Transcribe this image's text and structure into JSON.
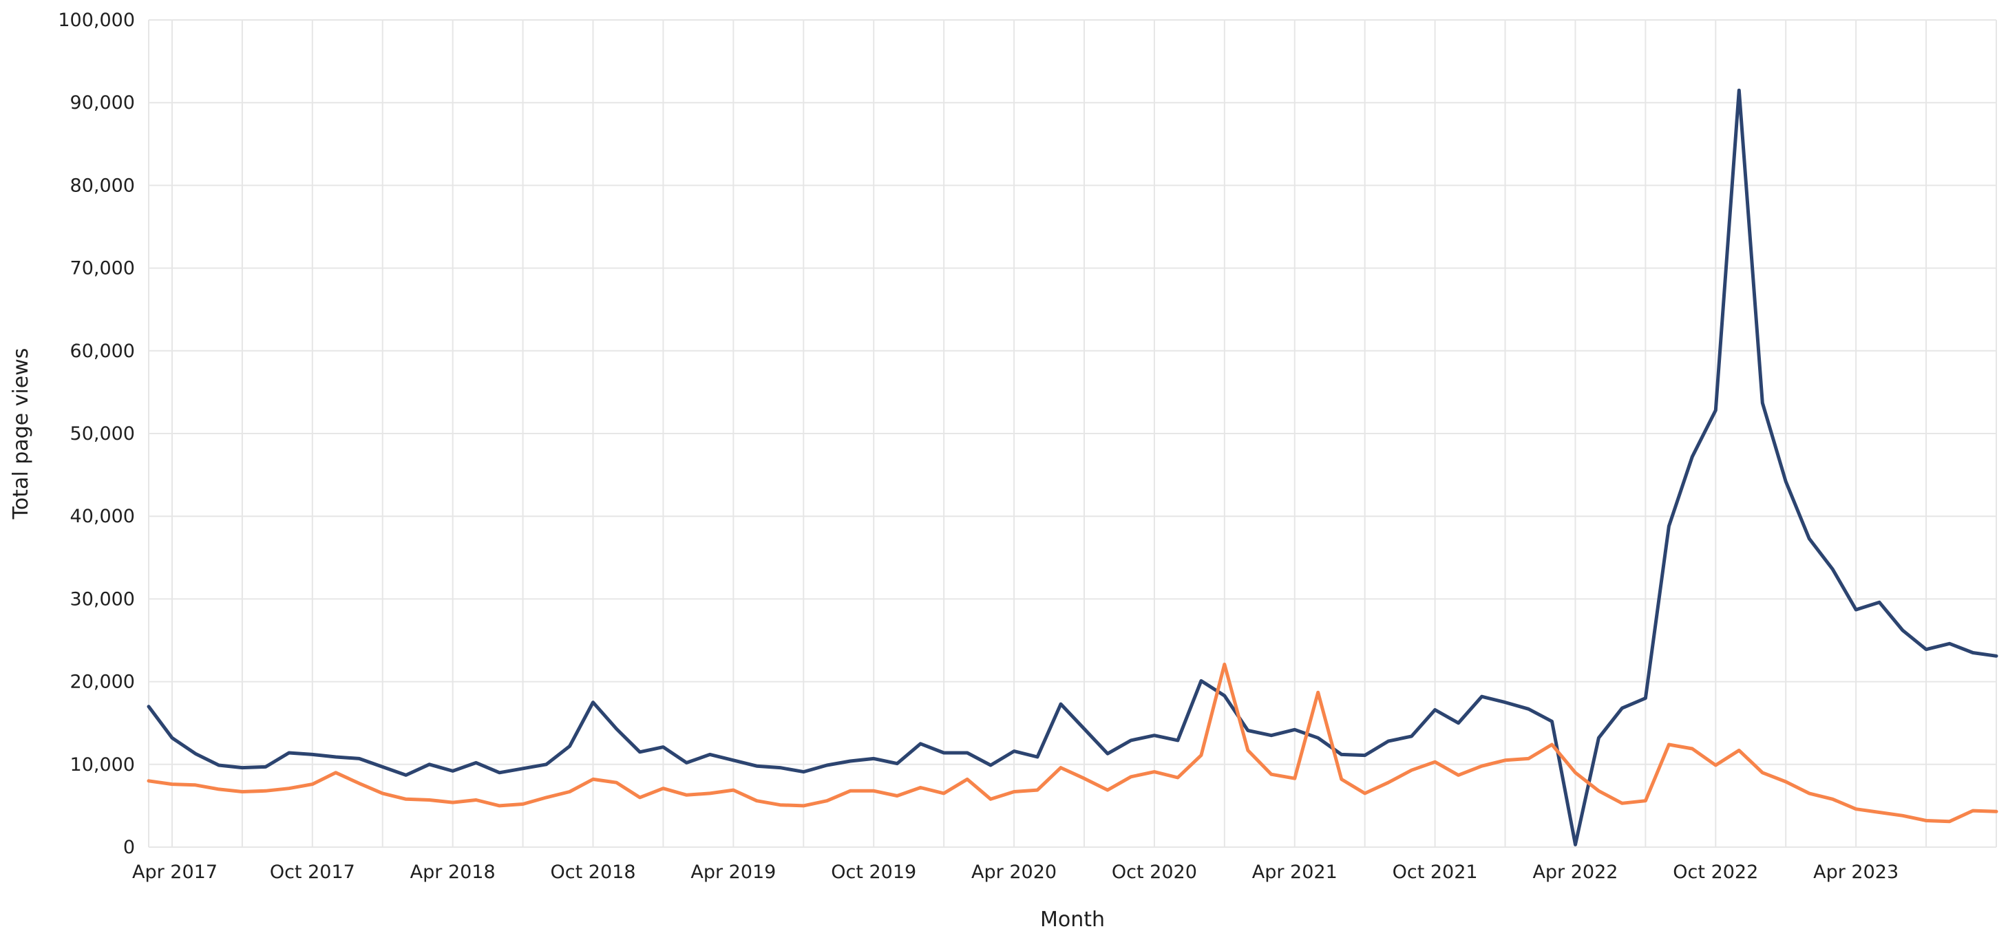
{
  "chart_data": {
    "type": "line",
    "xlabel": "Month",
    "ylabel": "Total page views",
    "ylim": [
      0,
      100000
    ],
    "yticks": [
      0,
      10000,
      20000,
      30000,
      40000,
      50000,
      60000,
      70000,
      80000,
      90000,
      100000
    ],
    "ytick_labels": [
      "0",
      "10,000",
      "20,000",
      "30,000",
      "40,000",
      "50,000",
      "60,000",
      "70,000",
      "80,000",
      "90,000",
      "100,000"
    ],
    "xticks": [
      "2017-04",
      "2017-10",
      "2018-04",
      "2018-10",
      "2019-04",
      "2019-10",
      "2020-04",
      "2020-10",
      "2021-04",
      "2021-10",
      "2022-04",
      "2022-10",
      "2023-04"
    ],
    "xtick_labels": [
      "Apr 2017",
      "Oct 2017",
      "Apr 2018",
      "Oct 2018",
      "Apr 2019",
      "Oct 2019",
      "Apr 2020",
      "Oct 2020",
      "Apr 2021",
      "Oct 2021",
      "Apr 2022",
      "Oct 2022",
      "Apr 2023"
    ],
    "grid": true,
    "x": [
      "2017-03",
      "2017-04",
      "2017-05",
      "2017-06",
      "2017-07",
      "2017-08",
      "2017-09",
      "2017-10",
      "2017-11",
      "2017-12",
      "2018-01",
      "2018-02",
      "2018-03",
      "2018-04",
      "2018-05",
      "2018-06",
      "2018-07",
      "2018-08",
      "2018-09",
      "2018-10",
      "2018-11",
      "2018-12",
      "2019-01",
      "2019-02",
      "2019-03",
      "2019-04",
      "2019-05",
      "2019-06",
      "2019-07",
      "2019-08",
      "2019-09",
      "2019-10",
      "2019-11",
      "2019-12",
      "2020-01",
      "2020-02",
      "2020-03",
      "2020-04",
      "2020-05",
      "2020-06",
      "2020-07",
      "2020-08",
      "2020-09",
      "2020-10",
      "2020-11",
      "2020-12",
      "2021-01",
      "2021-02",
      "2021-03",
      "2021-04",
      "2021-05",
      "2021-06",
      "2021-07",
      "2021-08",
      "2021-09",
      "2021-10",
      "2021-11",
      "2021-12",
      "2022-01",
      "2022-02",
      "2022-03",
      "2022-04",
      "2022-05",
      "2022-06",
      "2022-07",
      "2022-08",
      "2022-09",
      "2022-10",
      "2022-11",
      "2022-12",
      "2023-01",
      "2023-02",
      "2023-03",
      "2023-04",
      "2023-05",
      "2023-06",
      "2023-07",
      "2023-08",
      "2023-09",
      "2023-10"
    ],
    "series": [
      {
        "color": "#2c4470",
        "values": [
          17000,
          13200,
          11300,
          9900,
          9600,
          9700,
          11400,
          11200,
          10900,
          10700,
          9700,
          8700,
          10000,
          9200,
          10200,
          9000,
          9500,
          10000,
          12200,
          17500,
          14300,
          11500,
          12100,
          10200,
          11200,
          10500,
          9800,
          9600,
          9100,
          9900,
          10400,
          10700,
          10100,
          12500,
          11400,
          11400,
          9900,
          11600,
          10900,
          17300,
          14300,
          11300,
          12900,
          13500,
          12900,
          20100,
          18300,
          14100,
          13500,
          14200,
          13200,
          11200,
          11100,
          12800,
          13400,
          16600,
          15000,
          18200,
          17500,
          16700,
          15200,
          300,
          13200,
          16800,
          18000,
          38800,
          47200,
          52800,
          91500,
          53700,
          44200,
          37300,
          33600,
          28700,
          29600,
          26200,
          23900,
          24600,
          23500,
          23100
        ],
        "value_note": ""
      },
      {
        "color": "#f7844a",
        "values": [
          8000,
          7600,
          7500,
          7000,
          6700,
          6800,
          7100,
          7600,
          9000,
          7700,
          6500,
          5800,
          5700,
          5400,
          5700,
          5000,
          5200,
          6000,
          6700,
          8200,
          7800,
          6000,
          7100,
          6300,
          6500,
          6900,
          5600,
          5100,
          5000,
          5600,
          6800,
          6800,
          6200,
          7200,
          6500,
          8200,
          5800,
          6700,
          6900,
          9600,
          8300,
          6900,
          8500,
          9100,
          8400,
          11100,
          22100,
          11700,
          8800,
          8300,
          18700,
          8200,
          6500,
          7800,
          9300,
          10300,
          8700,
          9800,
          10500,
          10700,
          12400,
          9000,
          6800,
          5300,
          5600,
          12400,
          11900,
          9900,
          11700,
          9000,
          7900,
          6500,
          5800,
          4600,
          4200,
          3800,
          3200,
          3100,
          4400,
          4300
        ]
      }
    ]
  }
}
